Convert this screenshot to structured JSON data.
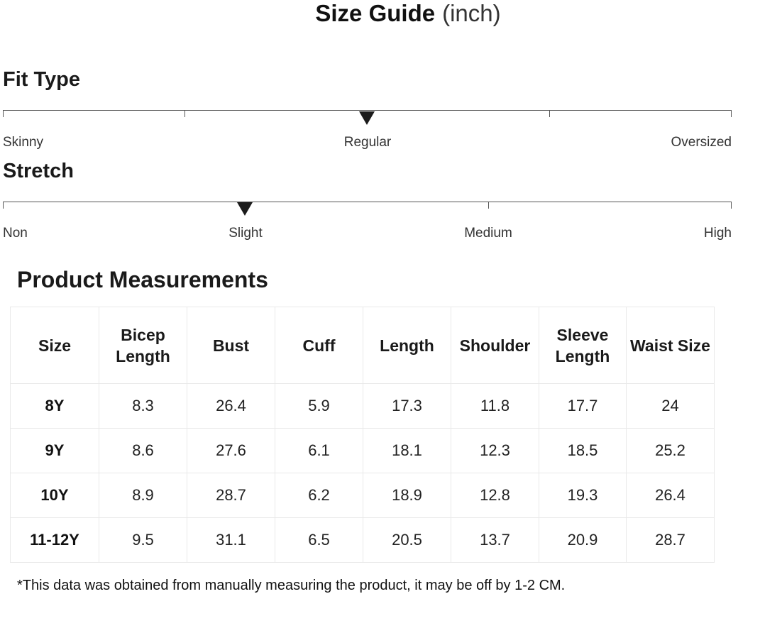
{
  "title": {
    "main": "Size Guide",
    "unit": "(inch)"
  },
  "fit_type": {
    "heading": "Fit Type",
    "labels": [
      "Skinny",
      "Regular",
      "Oversized"
    ],
    "selected_value": "Regular"
  },
  "stretch": {
    "heading": "Stretch",
    "labels": [
      "Non",
      "Slight",
      "Medium",
      "High"
    ],
    "selected_value": "Slight"
  },
  "measurements": {
    "heading": "Product Measurements",
    "columns": [
      "Size",
      "Bicep Length",
      "Bust",
      "Cuff",
      "Length",
      "Shoulder",
      "Sleeve Length",
      "Waist Size"
    ],
    "rows": [
      [
        "8Y",
        "8.3",
        "26.4",
        "5.9",
        "17.3",
        "11.8",
        "17.7",
        "24"
      ],
      [
        "9Y",
        "8.6",
        "27.6",
        "6.1",
        "18.1",
        "12.3",
        "18.5",
        "25.2"
      ],
      [
        "10Y",
        "8.9",
        "28.7",
        "6.2",
        "18.9",
        "12.8",
        "19.3",
        "26.4"
      ],
      [
        "11-12Y",
        "9.5",
        "31.1",
        "6.5",
        "20.5",
        "13.7",
        "20.9",
        "28.7"
      ]
    ]
  },
  "footnote": "*This data was obtained from manually measuring the product, it may be off by 1-2 CM."
}
